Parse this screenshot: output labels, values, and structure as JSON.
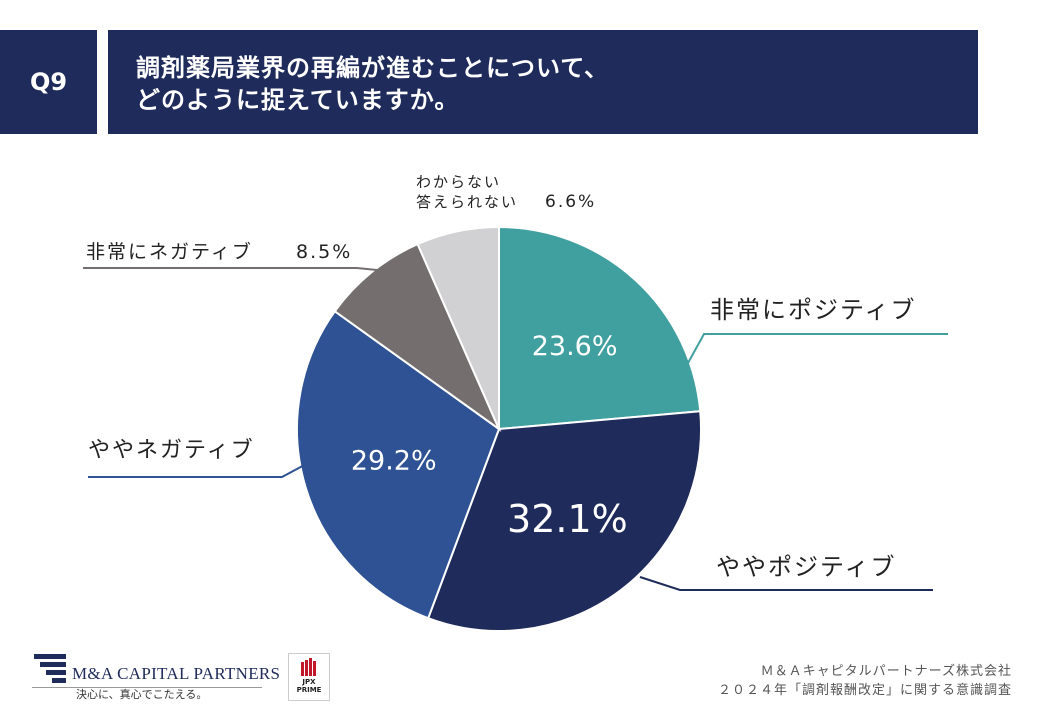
{
  "header": {
    "question_no": "Q9",
    "title_line1": "調剤薬局業界の再編が進むことについて、",
    "title_line2": "どのように捉えていますか。"
  },
  "chart_data": {
    "type": "pie",
    "slices": [
      {
        "label": "非常にポジティブ",
        "value": 23.6,
        "display": "23.6%",
        "color": "#40a0a0"
      },
      {
        "label": "ややポジティブ",
        "value": 32.1,
        "display": "32.1%",
        "color": "#1f2b5a"
      },
      {
        "label": "ややネガティブ",
        "value": 29.2,
        "display": "29.2%",
        "color": "#2e5294"
      },
      {
        "label": "非常にネガティブ",
        "value": 8.5,
        "display": "8.5%",
        "color": "#746e6e"
      },
      {
        "label": "わからない\n答えられない",
        "value": 6.6,
        "display": "6.6%",
        "color": "#d1d0d2"
      }
    ]
  },
  "footer": {
    "logo_name": "M&A CAPITAL PARTNERS",
    "logo_tagline": "決心に、真心でこたえる。",
    "jpx_line1": "JPX",
    "jpx_line2": "PRIME",
    "company": "Ｍ＆Ａキャピタルパートナーズ株式会社",
    "survey": "２０２４年「調剤報酬改定」に関する意識調査"
  }
}
